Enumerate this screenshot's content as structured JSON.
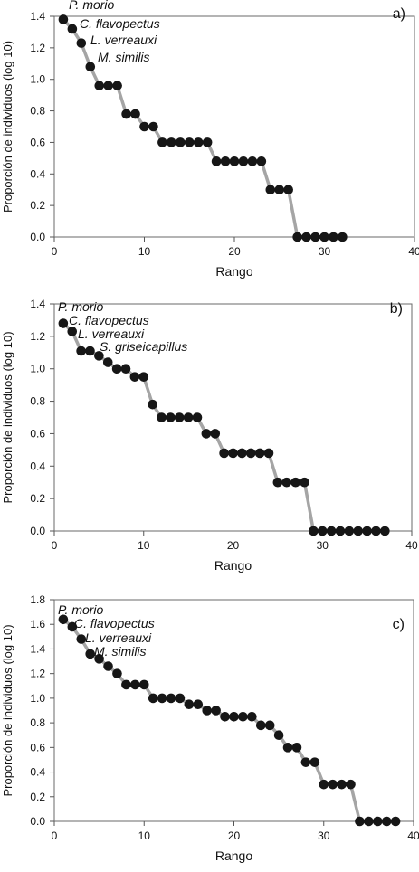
{
  "chart_data": [
    {
      "type": "line",
      "panel_label": "a)",
      "xlabel": "Rango",
      "ylabel": "Proporción de individuos (log 10)",
      "xlim": [
        0,
        40
      ],
      "ylim": [
        0,
        1.4
      ],
      "xticks": [
        "0",
        "10",
        "20",
        "30",
        "40"
      ],
      "yticks": [
        "0.0",
        "0.2",
        "0.4",
        "0.6",
        "0.8",
        "1.0",
        "1.2",
        "1.4"
      ],
      "annotations": [
        "P. morio",
        "C. flavopectus",
        "L. verreauxi",
        "M. similis"
      ],
      "x": [
        1,
        2,
        3,
        4,
        5,
        6,
        7,
        8,
        9,
        10,
        11,
        12,
        13,
        14,
        15,
        16,
        17,
        18,
        19,
        20,
        21,
        22,
        23,
        24,
        25,
        26,
        27,
        28,
        29,
        30,
        31,
        32
      ],
      "y": [
        1.38,
        1.32,
        1.23,
        1.08,
        0.96,
        0.96,
        0.96,
        0.78,
        0.78,
        0.7,
        0.7,
        0.6,
        0.6,
        0.6,
        0.6,
        0.6,
        0.6,
        0.48,
        0.48,
        0.48,
        0.48,
        0.48,
        0.48,
        0.3,
        0.3,
        0.3,
        0.0,
        0.0,
        0.0,
        0.0,
        0.0,
        0.0
      ]
    },
    {
      "type": "line",
      "panel_label": "b)",
      "xlabel": "Rango",
      "ylabel": "Proporción de individuos (log 10)",
      "xlim": [
        0,
        40
      ],
      "ylim": [
        0,
        1.4
      ],
      "xticks": [
        "0",
        "10",
        "20",
        "30",
        "40"
      ],
      "yticks": [
        "0.0",
        "0.2",
        "0.4",
        "0.6",
        "0.8",
        "1.0",
        "1.2",
        "1.4"
      ],
      "annotations": [
        "P. morio",
        "C. flavopectus",
        "L. verreauxi",
        "S. griseicapillus"
      ],
      "x": [
        1,
        2,
        3,
        4,
        5,
        6,
        7,
        8,
        9,
        10,
        11,
        12,
        13,
        14,
        15,
        16,
        17,
        18,
        19,
        20,
        21,
        22,
        23,
        24,
        25,
        26,
        27,
        28,
        29,
        30,
        31,
        32,
        33,
        34,
        35,
        36,
        37
      ],
      "y": [
        1.28,
        1.23,
        1.11,
        1.11,
        1.08,
        1.04,
        1.0,
        1.0,
        0.95,
        0.95,
        0.78,
        0.7,
        0.7,
        0.7,
        0.7,
        0.7,
        0.6,
        0.6,
        0.48,
        0.48,
        0.48,
        0.48,
        0.48,
        0.48,
        0.3,
        0.3,
        0.3,
        0.3,
        0.0,
        0.0,
        0.0,
        0.0,
        0.0,
        0.0,
        0.0,
        0.0,
        0.0
      ]
    },
    {
      "type": "line",
      "panel_label": "c)",
      "xlabel": "Rango",
      "ylabel": "Proporción de individuos (log 10)",
      "xlim": [
        0,
        40
      ],
      "ylim": [
        0,
        1.8
      ],
      "xticks": [
        "0",
        "10",
        "20",
        "30",
        "40"
      ],
      "yticks": [
        "0.0",
        "0.2",
        "0.4",
        "0.6",
        "0.8",
        "1.0",
        "1.2",
        "1.4",
        "1.6",
        "1.8"
      ],
      "annotations": [
        "P. morio",
        "C. flavopectus",
        "L. verreauxi",
        "M. similis"
      ],
      "x": [
        1,
        2,
        3,
        4,
        5,
        6,
        7,
        8,
        9,
        10,
        11,
        12,
        13,
        14,
        15,
        16,
        17,
        18,
        19,
        20,
        21,
        22,
        23,
        24,
        25,
        26,
        27,
        28,
        29,
        30,
        31,
        32,
        33,
        34,
        35,
        36,
        37,
        38
      ],
      "y": [
        1.64,
        1.58,
        1.48,
        1.36,
        1.32,
        1.26,
        1.2,
        1.11,
        1.11,
        1.11,
        1.0,
        1.0,
        1.0,
        1.0,
        0.95,
        0.95,
        0.9,
        0.9,
        0.85,
        0.85,
        0.85,
        0.85,
        0.78,
        0.78,
        0.7,
        0.6,
        0.6,
        0.48,
        0.48,
        0.3,
        0.3,
        0.3,
        0.3,
        0.0,
        0.0,
        0.0,
        0.0,
        0.0
      ]
    }
  ]
}
